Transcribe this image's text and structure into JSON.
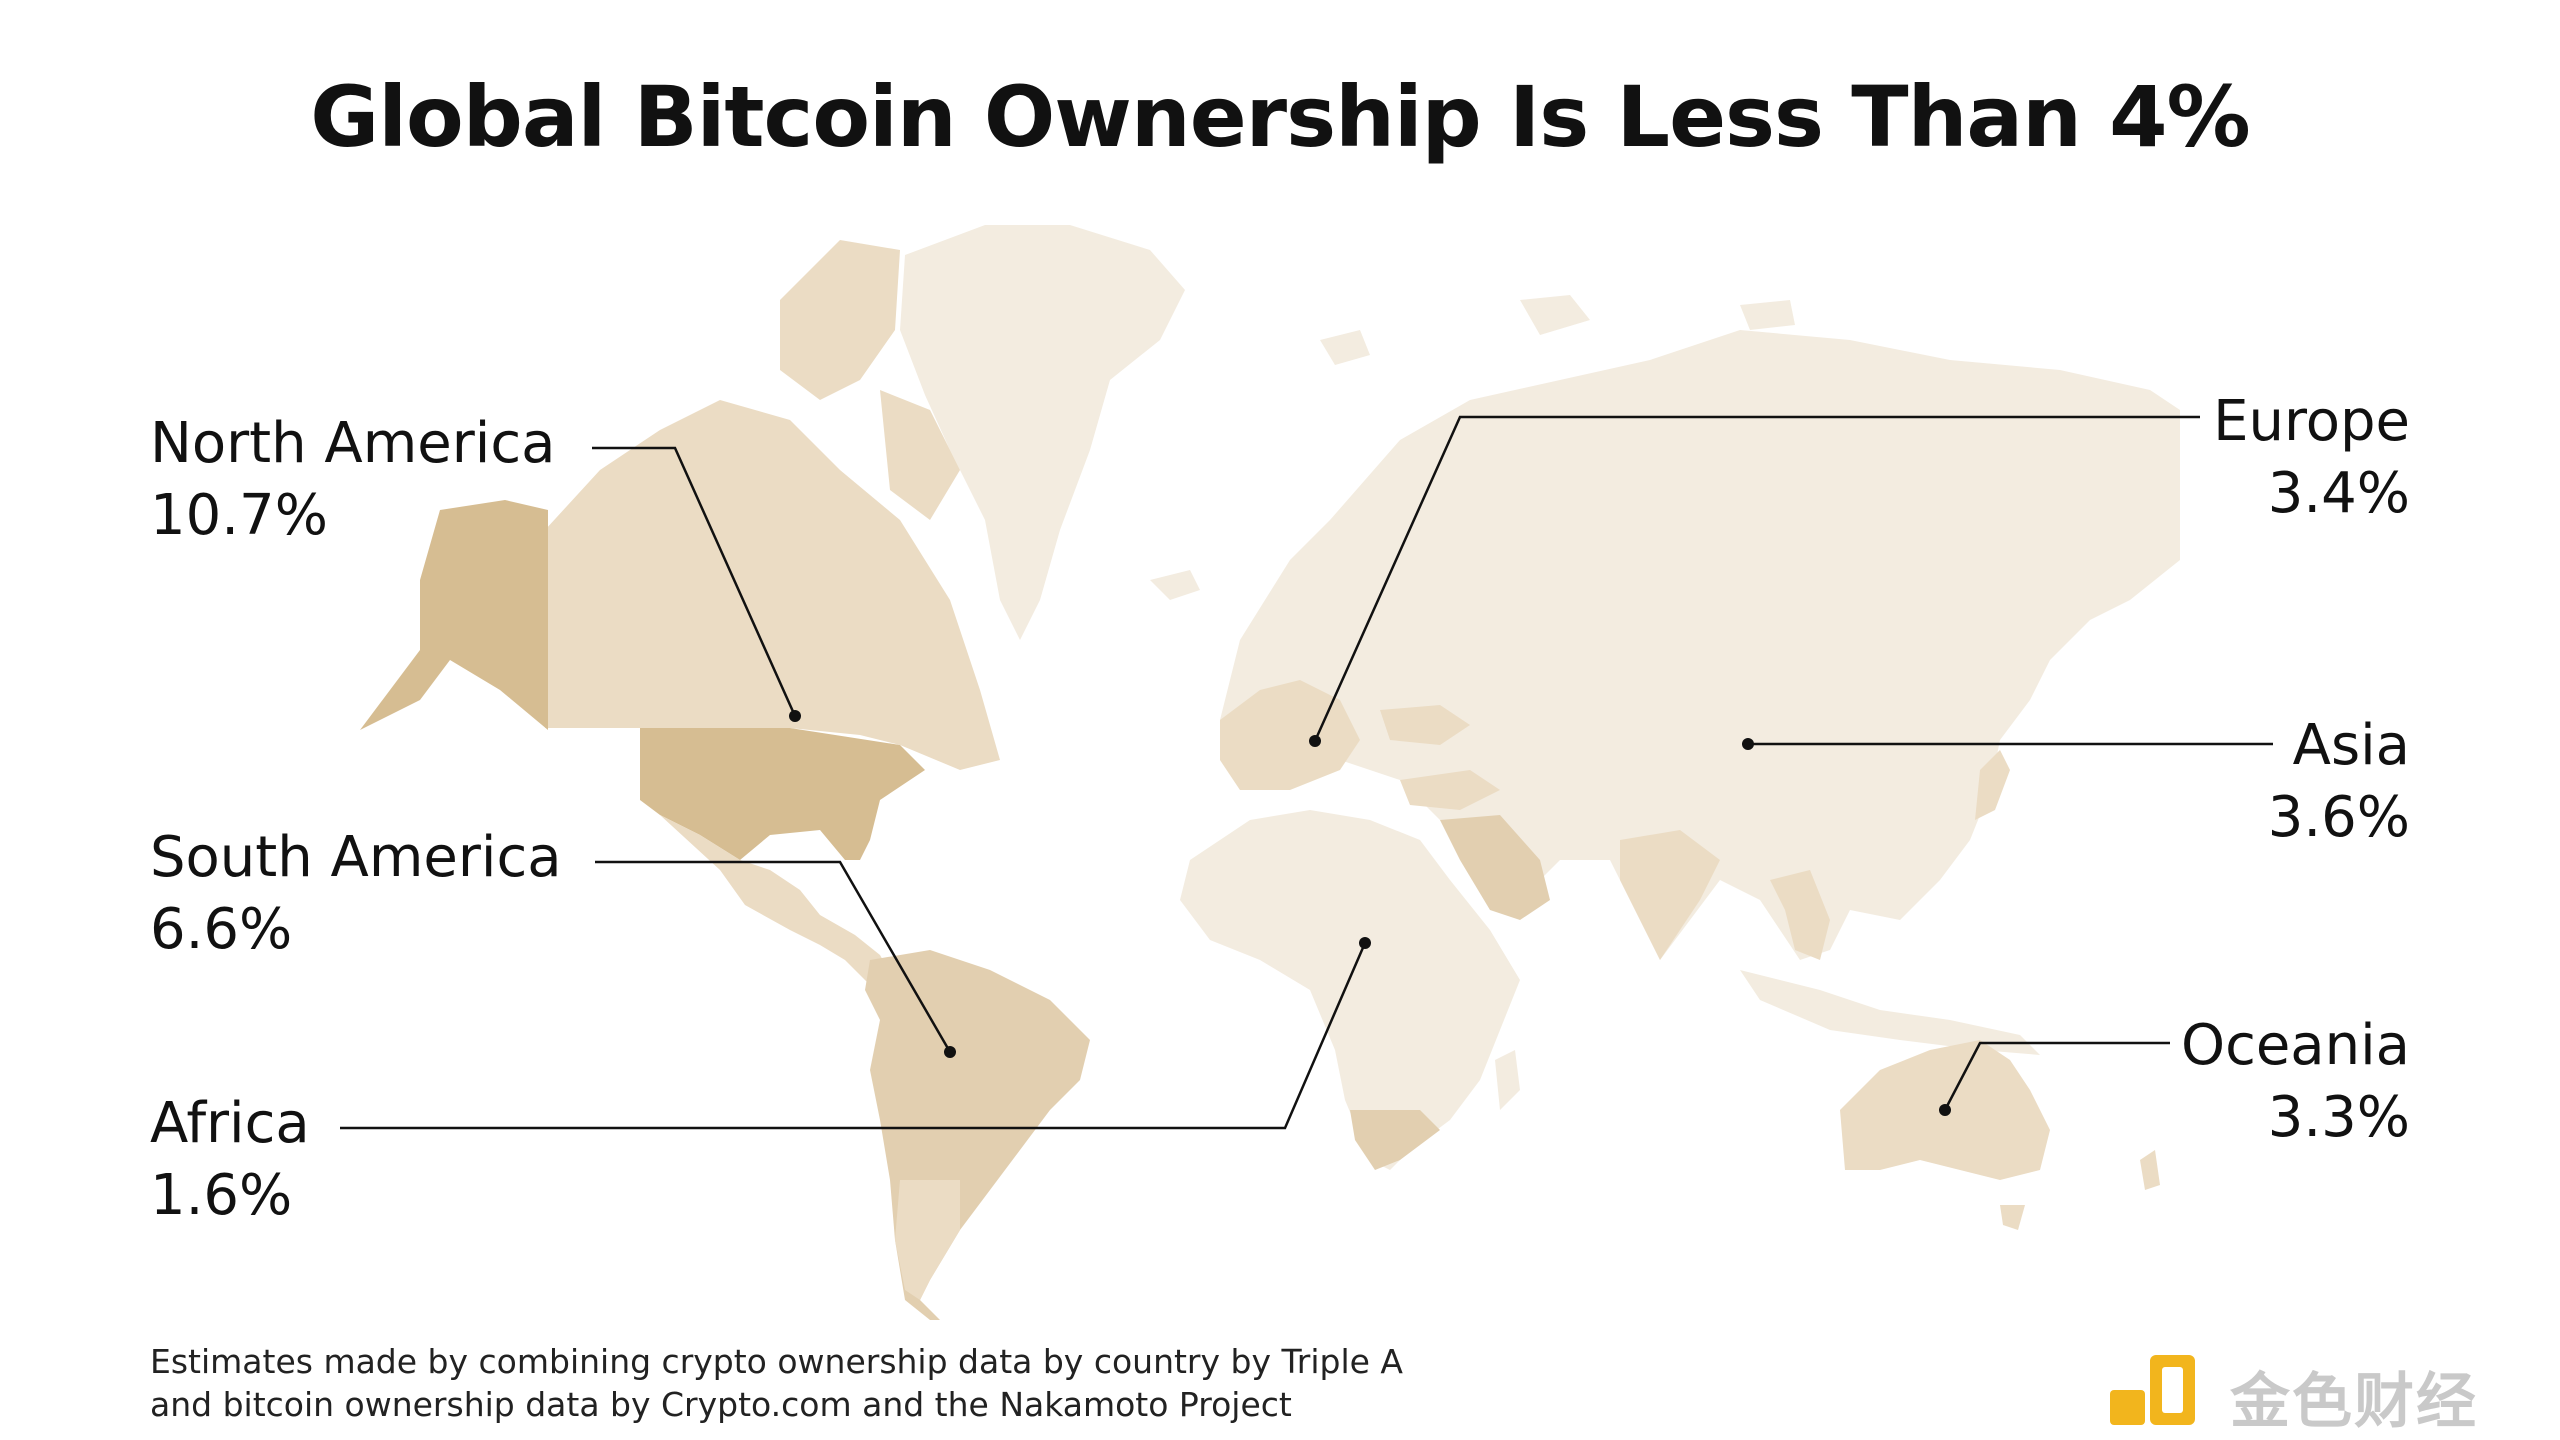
{
  "title": "Global Bitcoin Ownership Is Less Than 4%",
  "regions": [
    {
      "name": "North America",
      "value": "10.7%",
      "ownership_pct": 10.7
    },
    {
      "name": "South America",
      "value": "6.6%",
      "ownership_pct": 6.6
    },
    {
      "name": "Africa",
      "value": "1.6%",
      "ownership_pct": 1.6
    },
    {
      "name": "Europe",
      "value": "3.4%",
      "ownership_pct": 3.4
    },
    {
      "name": "Asia",
      "value": "3.6%",
      "ownership_pct": 3.6
    },
    {
      "name": "Oceania",
      "value": "3.3%",
      "ownership_pct": 3.3
    }
  ],
  "footnote": {
    "line1": "Estimates made by combining crypto ownership data by country by Triple A",
    "line2": "and bitcoin ownership data by Crypto.com and the Nakamoto Project"
  },
  "watermark": {
    "text": "金色财经"
  },
  "colors": {
    "land_base": "#f3ece0",
    "land_light": "#ebdcc4",
    "land_mid": "#e2cfb0",
    "land_dark": "#d6bd92",
    "leader": "#111111",
    "watermark_gold": "#f2b51d"
  }
}
